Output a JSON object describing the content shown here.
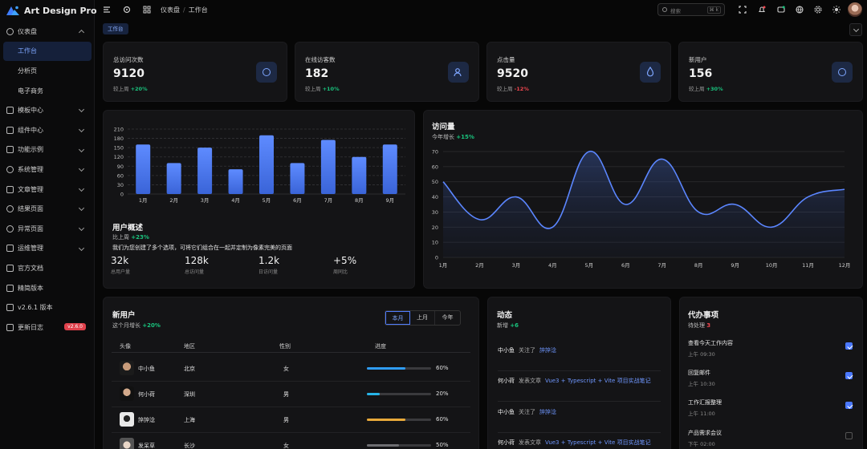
{
  "app": {
    "title": "Art Design Pro"
  },
  "sidebar": {
    "items": [
      {
        "label": "仪表盘",
        "icon": "dashboard-icon",
        "expanded": true
      },
      {
        "label": "工作台",
        "sub": true,
        "active": true
      },
      {
        "label": "分析页",
        "sub": true
      },
      {
        "label": "电子商务",
        "sub": true
      },
      {
        "label": "模板中心",
        "icon": "template-icon"
      },
      {
        "label": "组件中心",
        "icon": "component-icon"
      },
      {
        "label": "功能示例",
        "icon": "feature-icon"
      },
      {
        "label": "系统管理",
        "icon": "user-icon"
      },
      {
        "label": "文章管理",
        "icon": "article-icon"
      },
      {
        "label": "结果页面",
        "icon": "result-icon"
      },
      {
        "label": "异常页面",
        "icon": "warning-icon"
      },
      {
        "label": "运维管理",
        "icon": "shield-icon"
      },
      {
        "label": "官方文档",
        "icon": "document-icon"
      },
      {
        "label": "精简版本",
        "icon": "layers-icon"
      },
      {
        "label": "v2.6.1 版本",
        "icon": "version-icon"
      },
      {
        "label": "更新日志",
        "icon": "changelog-icon",
        "badge": "v2.6.0"
      }
    ]
  },
  "topbar": {
    "breadcrumb": [
      "仪表盘",
      "工作台"
    ],
    "search_placeholder": "搜索",
    "search_shortcut": "⌘ k"
  },
  "tabs": {
    "active": "工作台"
  },
  "stats": [
    {
      "title": "总访问次数",
      "value": "9120",
      "compare": "较上周",
      "change": "+20%",
      "trend": "up",
      "icon": "chart-pie-icon"
    },
    {
      "title": "在线访客数",
      "value": "182",
      "compare": "较上周",
      "change": "+10%",
      "trend": "up",
      "icon": "users-icon"
    },
    {
      "title": "点击量",
      "value": "9520",
      "compare": "较上周",
      "change": "-12%",
      "trend": "down",
      "icon": "drop-icon"
    },
    {
      "title": "新用户",
      "value": "156",
      "compare": "较上周",
      "change": "+30%",
      "trend": "up",
      "icon": "chart-pie-icon"
    }
  ],
  "overview": {
    "title": "用户概述",
    "compare": "比上周",
    "change": "+23%",
    "desc": "我们为您创建了多个选项，可将它们组合在一起并定制为像素完美的页面",
    "stats": [
      {
        "value": "32k",
        "label": "总用户量"
      },
      {
        "value": "128k",
        "label": "总访问量"
      },
      {
        "value": "1.2k",
        "label": "日访问量"
      },
      {
        "value": "+5%",
        "label": "周同比"
      }
    ]
  },
  "visits": {
    "title": "访问量",
    "sub": "今年增长",
    "change": "+15%"
  },
  "chart_data": [
    {
      "type": "bar",
      "categories": [
        "1月",
        "2月",
        "3月",
        "4月",
        "5月",
        "6月",
        "7月",
        "8月",
        "9月"
      ],
      "values": [
        160,
        100,
        150,
        80,
        190,
        100,
        175,
        120,
        160
      ],
      "ylim": [
        0,
        210
      ],
      "yticks": [
        0,
        30,
        60,
        90,
        120,
        150,
        180,
        210
      ],
      "grid": true,
      "color": "#5b86ff"
    },
    {
      "type": "area",
      "categories": [
        "1月",
        "2月",
        "3月",
        "4月",
        "5月",
        "6月",
        "7月",
        "8月",
        "9月",
        "10月",
        "11月",
        "12月"
      ],
      "values": [
        50,
        25,
        40,
        20,
        70,
        35,
        65,
        30,
        35,
        20,
        40,
        45
      ],
      "ylim": [
        0,
        70
      ],
      "yticks": [
        0,
        10,
        20,
        30,
        40,
        50,
        60,
        70
      ],
      "grid": true,
      "color": "#5b86ff"
    }
  ],
  "new_users": {
    "title": "新用户",
    "sub": "这个月增长",
    "change": "+20%",
    "ranges": [
      "本月",
      "上月",
      "今年"
    ],
    "active_range": "本月",
    "headers": [
      "头像",
      "地区",
      "性别",
      "进度"
    ],
    "rows": [
      {
        "name": "中小鱼",
        "region": "北京",
        "gender": "女",
        "progress": 60,
        "pct": "60%",
        "color": "#2f9cf3"
      },
      {
        "name": "何小荷",
        "region": "深圳",
        "gender": "男",
        "progress": 20,
        "pct": "20%",
        "color": "#27b4e8"
      },
      {
        "name": "誶誶淰",
        "region": "上海",
        "gender": "男",
        "progress": 60,
        "pct": "60%",
        "color": "#e8a93a"
      },
      {
        "name": "发呆草",
        "region": "长沙",
        "gender": "女",
        "progress": 50,
        "pct": "50%",
        "color": "#6e6e72"
      }
    ]
  },
  "activity": {
    "title": "动态",
    "sub": "新增",
    "change": "+6",
    "items": [
      {
        "who": "中小鱼",
        "action": "关注了",
        "target": "誶誶淰"
      },
      {
        "who": "何小荷",
        "action": "发表文章",
        "target": "Vue3 + Typescript + Vite 项目实战笔记"
      },
      {
        "who": "中小鱼",
        "action": "关注了",
        "target": "誶誶淰"
      },
      {
        "who": "何小荷",
        "action": "发表文章",
        "target": "Vue3 + Typescript + Vite 项目实战笔记"
      }
    ]
  },
  "todo": {
    "title": "代办事项",
    "sub": "待处理",
    "count": "3",
    "items": [
      {
        "title": "查看今天工作内容",
        "time": "上午 09:30",
        "done": true
      },
      {
        "title": "回复邮件",
        "time": "上午 10:30",
        "done": true
      },
      {
        "title": "工作汇报整理",
        "time": "上午 11:00",
        "done": true
      },
      {
        "title": "产品需求会议",
        "time": "下午 02:00",
        "done": false
      }
    ]
  }
}
